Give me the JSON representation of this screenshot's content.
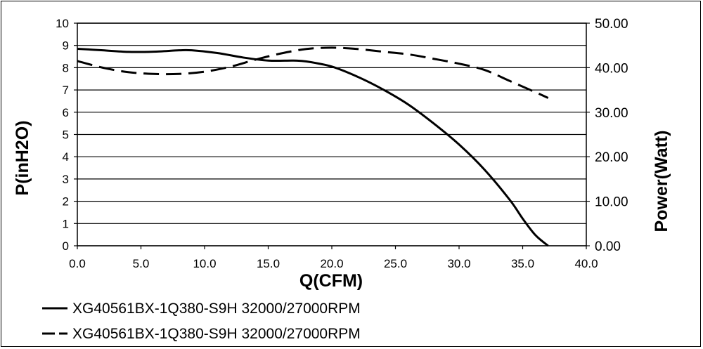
{
  "chart_data": {
    "type": "line",
    "xlabel": "Q(CFM)",
    "ylabel_left": "P(inH2O)",
    "ylabel_right": "Power(Watt)",
    "xlim": [
      0,
      40
    ],
    "ylim_left": [
      0,
      10
    ],
    "ylim_right": [
      0,
      50
    ],
    "x_ticks": [
      "0.0",
      "5.0",
      "10.0",
      "15.0",
      "20.0",
      "25.0",
      "30.0",
      "35.0",
      "40.0"
    ],
    "y_left_ticks": [
      "0",
      "1",
      "2",
      "3",
      "4",
      "5",
      "6",
      "7",
      "8",
      "9",
      "10"
    ],
    "y_right_ticks": [
      "0.00",
      "10.00",
      "20.00",
      "30.00",
      "40.00",
      "50.00"
    ],
    "grid": "horizontal",
    "legend_position": "bottom-left",
    "series": [
      {
        "name": "XG40561BX-1Q380-S9H 32000/27000RPM",
        "axis": "left",
        "style": "solid",
        "color": "#000000",
        "points": [
          [
            0,
            8.85
          ],
          [
            2,
            8.78
          ],
          [
            4,
            8.71
          ],
          [
            6,
            8.72
          ],
          [
            8,
            8.78
          ],
          [
            9,
            8.78
          ],
          [
            11,
            8.66
          ],
          [
            13,
            8.46
          ],
          [
            15,
            8.32
          ],
          [
            17,
            8.32
          ],
          [
            18,
            8.28
          ],
          [
            20,
            8.05
          ],
          [
            22,
            7.6
          ],
          [
            24,
            7.03
          ],
          [
            26,
            6.35
          ],
          [
            28,
            5.5
          ],
          [
            30,
            4.55
          ],
          [
            32,
            3.42
          ],
          [
            34,
            2.05
          ],
          [
            35,
            1.22
          ],
          [
            36,
            0.48
          ],
          [
            37,
            0.0
          ]
        ]
      },
      {
        "name": "XG40561BX-1Q380-S9H 32000/27000RPM",
        "axis": "right",
        "style": "dashed",
        "color": "#000000",
        "points": [
          [
            0,
            41.5
          ],
          [
            2,
            40.0
          ],
          [
            4,
            39.0
          ],
          [
            6,
            38.6
          ],
          [
            8,
            38.6
          ],
          [
            10,
            39.1
          ],
          [
            12,
            40.2
          ],
          [
            14,
            41.8
          ],
          [
            16,
            43.2
          ],
          [
            18,
            44.2
          ],
          [
            20,
            44.5
          ],
          [
            22,
            44.2
          ],
          [
            24,
            43.6
          ],
          [
            26,
            43.0
          ],
          [
            28,
            42.0
          ],
          [
            30,
            40.9
          ],
          [
            32,
            39.5
          ],
          [
            34,
            37.0
          ],
          [
            36,
            34.5
          ],
          [
            37,
            33.2
          ]
        ]
      }
    ]
  }
}
